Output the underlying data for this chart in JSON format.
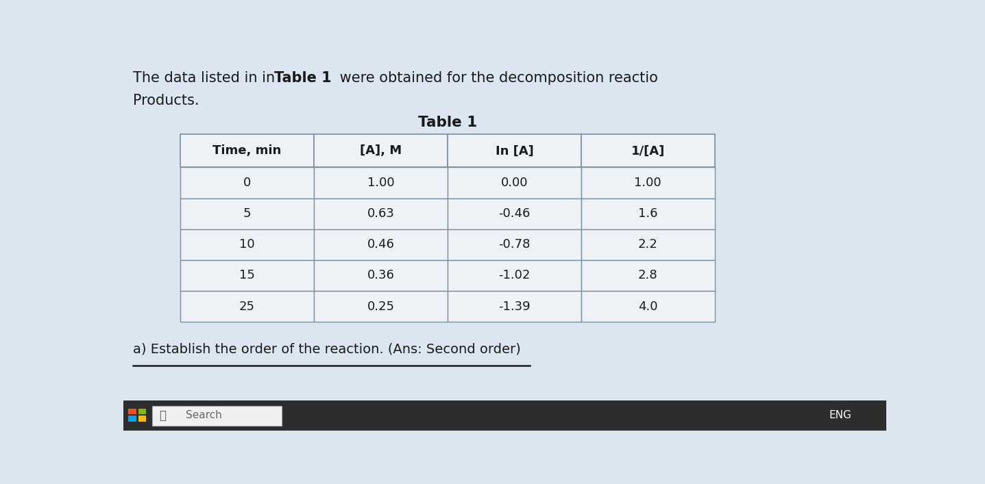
{
  "bg_color": "#dce6f0",
  "text_color": "#1a1a1a",
  "table_title": "Table 1",
  "col_headers": [
    "Time, min",
    "[A], M",
    "In [A]",
    "1/[A]"
  ],
  "rows": [
    [
      "0",
      "1.00",
      "0.00",
      "1.00"
    ],
    [
      "5",
      "0.63",
      "-0.46",
      "1.6"
    ],
    [
      "10",
      "0.46",
      "-0.78",
      "2.2"
    ],
    [
      "15",
      "0.36",
      "-1.02",
      "2.8"
    ],
    [
      "25",
      "0.25",
      "-1.39",
      "4.0"
    ]
  ],
  "footer_text": "a) Establish the order of the reaction. (Ans: Second order)",
  "taskbar_color": "#2d2d2d",
  "taskbar_search": "Search",
  "eng_label": "ENG",
  "table_bg": "#eef2f7",
  "table_border_color": "#7a8fa0",
  "win_colors": [
    "#f25022",
    "#7fba00",
    "#00a4ef",
    "#ffb900"
  ]
}
